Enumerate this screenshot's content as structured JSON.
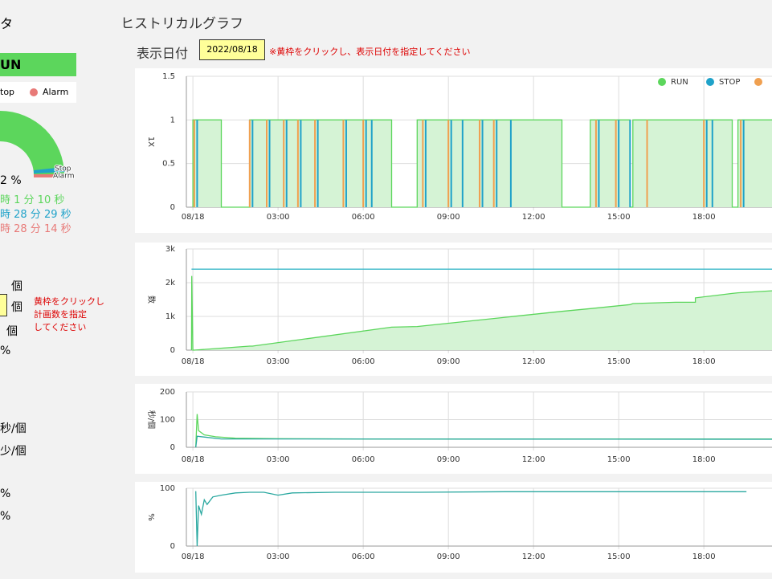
{
  "left": {
    "title": "タ",
    "status": "UN",
    "legend": [
      "top",
      "Alarm"
    ],
    "gauge_labels": [
      "Stop",
      "Alarm"
    ],
    "rate": "2 %",
    "times": [
      "時 1 分 10 秒",
      "時 28 分 29 秒",
      "時 28 分 14 秒"
    ],
    "units": [
      "個",
      "個",
      "個"
    ],
    "note": [
      "黄枠をクリックし",
      "計画数を指定",
      "してください"
    ],
    "rows": [
      "%",
      "秒/個",
      "少/個",
      "%",
      "%"
    ]
  },
  "header": {
    "title": "ヒストリカルグラフ",
    "date_label": "表示日付",
    "date": "2022/08/18",
    "note": "※黄枠をクリックし、表示日付を指定してください"
  },
  "chart_data": [
    {
      "type": "line",
      "ylabel": "1X",
      "xlim": [
        -0.23,
        20.4
      ],
      "ylim": [
        0,
        1.5
      ],
      "yticks": [
        0,
        0.5,
        1,
        1.5
      ],
      "legend": "top-right",
      "xticks": [
        {
          "value": 0,
          "label": "08/18"
        },
        {
          "value": 3,
          "label": "03:00"
        },
        {
          "value": 6,
          "label": "06:00"
        },
        {
          "value": 9,
          "label": "09:00"
        },
        {
          "value": 12,
          "label": "12:00"
        },
        {
          "value": 15,
          "label": "15:00"
        },
        {
          "value": 18,
          "label": "18:00"
        }
      ],
      "series": [
        {
          "name": "RUN",
          "color": "#5cd65c",
          "fill": "#d5f3d5",
          "x": [
            0,
            0,
            1,
            1,
            2,
            2,
            7,
            7,
            7.9,
            7.9,
            13,
            13,
            14,
            14,
            15.4,
            15.4,
            15.5,
            15.5,
            19,
            19,
            19.2,
            19.2,
            20.4
          ],
          "values": [
            0,
            1,
            1,
            0,
            0,
            1,
            1,
            0,
            0,
            1,
            1,
            0,
            0,
            1,
            1,
            0,
            0,
            1,
            1,
            0,
            0,
            1,
            1
          ]
        },
        {
          "name": "STOP",
          "color": "#1fa2c9",
          "kind": "spike",
          "x": [
            0.15,
            2.1,
            2.7,
            3.3,
            3.8,
            4.4,
            5.4,
            6.1,
            6.3,
            8.2,
            9.1,
            9.5,
            10.2,
            10.7,
            11.2,
            14.3,
            15.0,
            15.4,
            18.1,
            18.3,
            19.4
          ],
          "values": [
            1,
            1,
            1,
            1,
            1,
            1,
            1,
            1,
            1,
            1,
            1,
            1,
            1,
            1,
            1,
            1,
            1,
            1,
            1,
            1,
            1
          ]
        },
        {
          "color": "#f0a050",
          "kind": "spike",
          "x": [
            0.05,
            2.0,
            2.6,
            3.2,
            3.7,
            4.3,
            5.3,
            6.0,
            8.1,
            9.0,
            10.1,
            10.6,
            14.2,
            14.9,
            16.0,
            18.0,
            19.3
          ],
          "values": [
            1,
            1,
            1,
            1,
            1,
            1,
            1,
            1,
            1,
            1,
            1,
            1,
            1,
            1,
            1,
            1,
            1
          ]
        },
        {
          "color": "#e87a78"
        }
      ]
    },
    {
      "type": "line",
      "ylabel": "数",
      "xlim": [
        -0.23,
        20.4
      ],
      "ylim": [
        0,
        3000
      ],
      "yticks": [
        0,
        {
          "value": 1000,
          "label": "1k"
        },
        {
          "value": 2000,
          "label": "2k"
        },
        {
          "value": 3000,
          "label": "3k"
        }
      ],
      "xticks": [
        {
          "value": 0,
          "label": "08/18"
        },
        {
          "value": 3,
          "label": "03:00"
        },
        {
          "value": 6,
          "label": "06:00"
        },
        {
          "value": 9,
          "label": "09:00"
        },
        {
          "value": 12,
          "label": "12:00"
        },
        {
          "value": 15,
          "label": "15:00"
        },
        {
          "value": 18,
          "label": "18:00"
        }
      ],
      "series": [
        {
          "color": "#5cd65c",
          "fill": "#d5f3d5",
          "x": [
            -0.05,
            -0.04,
            0,
            0.05,
            2,
            2.1,
            7,
            7.9,
            13,
            14,
            15.4,
            15.5,
            17,
            17.7,
            17.7,
            19,
            19.2,
            20.4
          ],
          "values": [
            0,
            2200,
            0,
            0,
            120,
            120,
            680,
            700,
            1150,
            1230,
            1350,
            1380,
            1420,
            1420,
            1550,
            1680,
            1700,
            1760
          ]
        },
        {
          "color": "#3bb8c9",
          "x": [
            -0.05,
            20.4
          ],
          "values": [
            2400,
            2400
          ]
        }
      ]
    },
    {
      "type": "line",
      "ylabel": "秒/個",
      "xlim": [
        -0.23,
        20.4
      ],
      "ylim": [
        0,
        200
      ],
      "yticks": [
        0,
        100,
        200
      ],
      "xticks": [
        {
          "value": 0,
          "label": "08/18"
        },
        {
          "value": 3,
          "label": "03:00"
        },
        {
          "value": 6,
          "label": "06:00"
        },
        {
          "value": 9,
          "label": "09:00"
        },
        {
          "value": 12,
          "label": "12:00"
        },
        {
          "value": 15,
          "label": "15:00"
        },
        {
          "value": 18,
          "label": "18:00"
        }
      ],
      "series": [
        {
          "color": "#5cd65c",
          "x": [
            0.1,
            0.15,
            0.2,
            0.4,
            0.8,
            1.5,
            3,
            6,
            9,
            12,
            15,
            18,
            20.4
          ],
          "values": [
            0,
            120,
            60,
            45,
            38,
            33,
            31,
            30,
            30,
            30,
            30,
            30,
            30
          ]
        },
        {
          "color": "#2aa8a0",
          "x": [
            0.1,
            0.15,
            1,
            20.4
          ],
          "values": [
            0,
            40,
            30,
            29
          ]
        }
      ]
    },
    {
      "type": "line",
      "ylabel": "%",
      "xlim": [
        -0.23,
        20.4
      ],
      "ylim": [
        0,
        100
      ],
      "yticks": [
        0,
        100
      ],
      "xticks": [
        {
          "value": 0,
          "label": "08/18"
        },
        {
          "value": 3,
          "label": "03:00"
        },
        {
          "value": 6,
          "label": "06:00"
        },
        {
          "value": 9,
          "label": "09:00"
        },
        {
          "value": 12,
          "label": "12:00"
        },
        {
          "value": 15,
          "label": "15:00"
        },
        {
          "value": 18,
          "label": "18:00"
        }
      ],
      "series": [
        {
          "color": "#2aa8a0",
          "x": [
            0.1,
            0.15,
            0.2,
            0.3,
            0.4,
            0.5,
            0.7,
            1,
            1.5,
            2,
            2.5,
            3,
            3.5,
            5,
            8,
            11,
            14,
            17,
            19.5
          ],
          "values": [
            95,
            0,
            70,
            55,
            80,
            72,
            85,
            88,
            92,
            93,
            93,
            88,
            92,
            93,
            93,
            94,
            94,
            94,
            94
          ]
        }
      ]
    }
  ]
}
